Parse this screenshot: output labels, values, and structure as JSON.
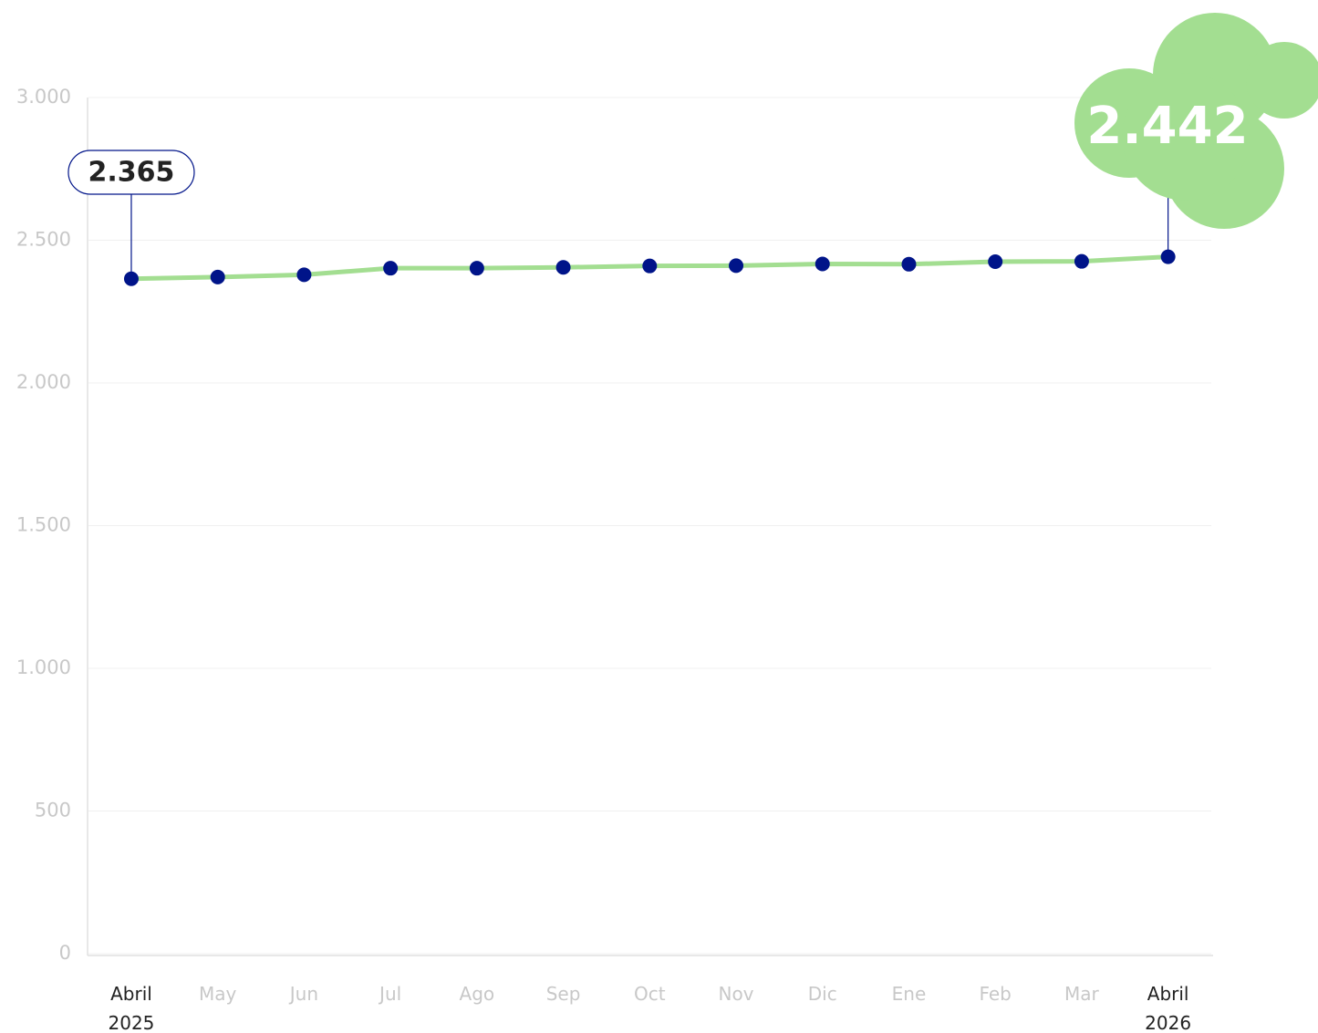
{
  "chart_data": {
    "type": "line",
    "categories": [
      "Abril 2025",
      "May",
      "Jun",
      "Jul",
      "Ago",
      "Sep",
      "Oct",
      "Nov",
      "Dic",
      "Ene",
      "Feb",
      "Mar",
      "Abril 2026"
    ],
    "values": [
      2365,
      2371,
      2379,
      2402,
      2402,
      2405,
      2410,
      2411,
      2417,
      2416,
      2425,
      2426,
      2442
    ],
    "value_labels": [
      "2.365",
      null,
      null,
      null,
      null,
      null,
      null,
      null,
      null,
      null,
      null,
      null,
      "2.442"
    ],
    "color": "#a3de91",
    "marker_color": "#001489",
    "ylim": [
      0,
      3000
    ],
    "yticks": [
      0,
      500,
      {
        "value": 1000,
        "label": "1.000"
      },
      {
        "value": 1500,
        "label": "1.500"
      },
      {
        "value": 2000,
        "label": "2.000"
      },
      {
        "value": 2500,
        "label": "2.500"
      },
      {
        "value": 3000,
        "label": "3.000"
      }
    ],
    "grid": true
  }
}
